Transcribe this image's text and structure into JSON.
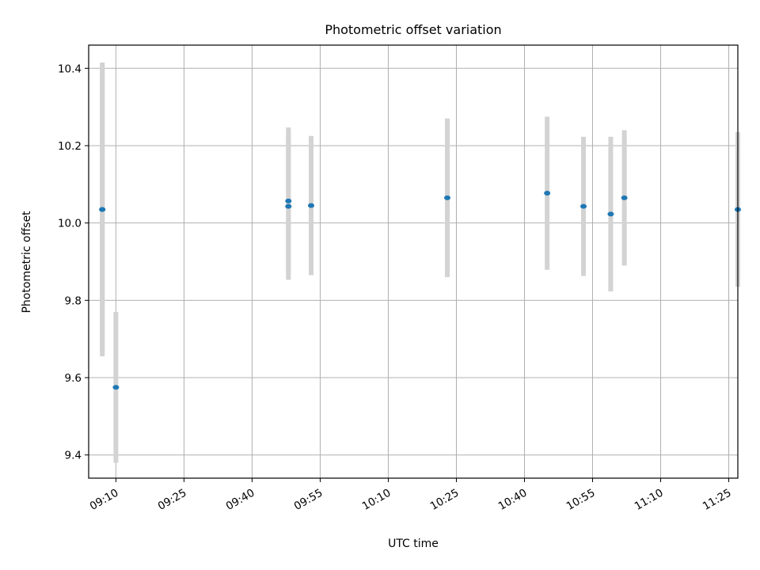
{
  "chart_data": {
    "type": "scatter",
    "title": "Photometric offset variation",
    "xlabel": "UTC time",
    "ylabel": "Photometric offset",
    "x_ticks": [
      "09:10",
      "09:25",
      "09:40",
      "09:55",
      "10:10",
      "10:25",
      "10:40",
      "10:55",
      "11:10",
      "11:25"
    ],
    "y_ticks": [
      9.4,
      9.6,
      9.8,
      10.0,
      10.2,
      10.4
    ],
    "xlim": [
      "09:04",
      "11:27"
    ],
    "ylim": [
      9.34,
      10.46
    ],
    "grid": true,
    "colors": {
      "points": "#1f77b4",
      "errorbars": "#d3d3d3",
      "grid": "#b0b0b0"
    },
    "points": [
      {
        "time": "09:07",
        "y": 10.035,
        "err": 0.38
      },
      {
        "time": "09:07",
        "y": 10.035,
        "err": 0.37
      },
      {
        "time": "09:10",
        "y": 9.575,
        "err": 0.195
      },
      {
        "time": "09:48",
        "y": 10.057,
        "err": 0.19
      },
      {
        "time": "09:48",
        "y": 10.043,
        "err": 0.19
      },
      {
        "time": "09:53",
        "y": 10.045,
        "err": 0.18
      },
      {
        "time": "10:23",
        "y": 10.065,
        "err": 0.205
      },
      {
        "time": "10:45",
        "y": 10.077,
        "err": 0.198
      },
      {
        "time": "10:53",
        "y": 10.043,
        "err": 0.18
      },
      {
        "time": "10:59",
        "y": 10.023,
        "err": 0.2
      },
      {
        "time": "11:02",
        "y": 10.065,
        "err": 0.175
      },
      {
        "time": "11:27",
        "y": 10.035,
        "err": 0.2
      }
    ]
  }
}
